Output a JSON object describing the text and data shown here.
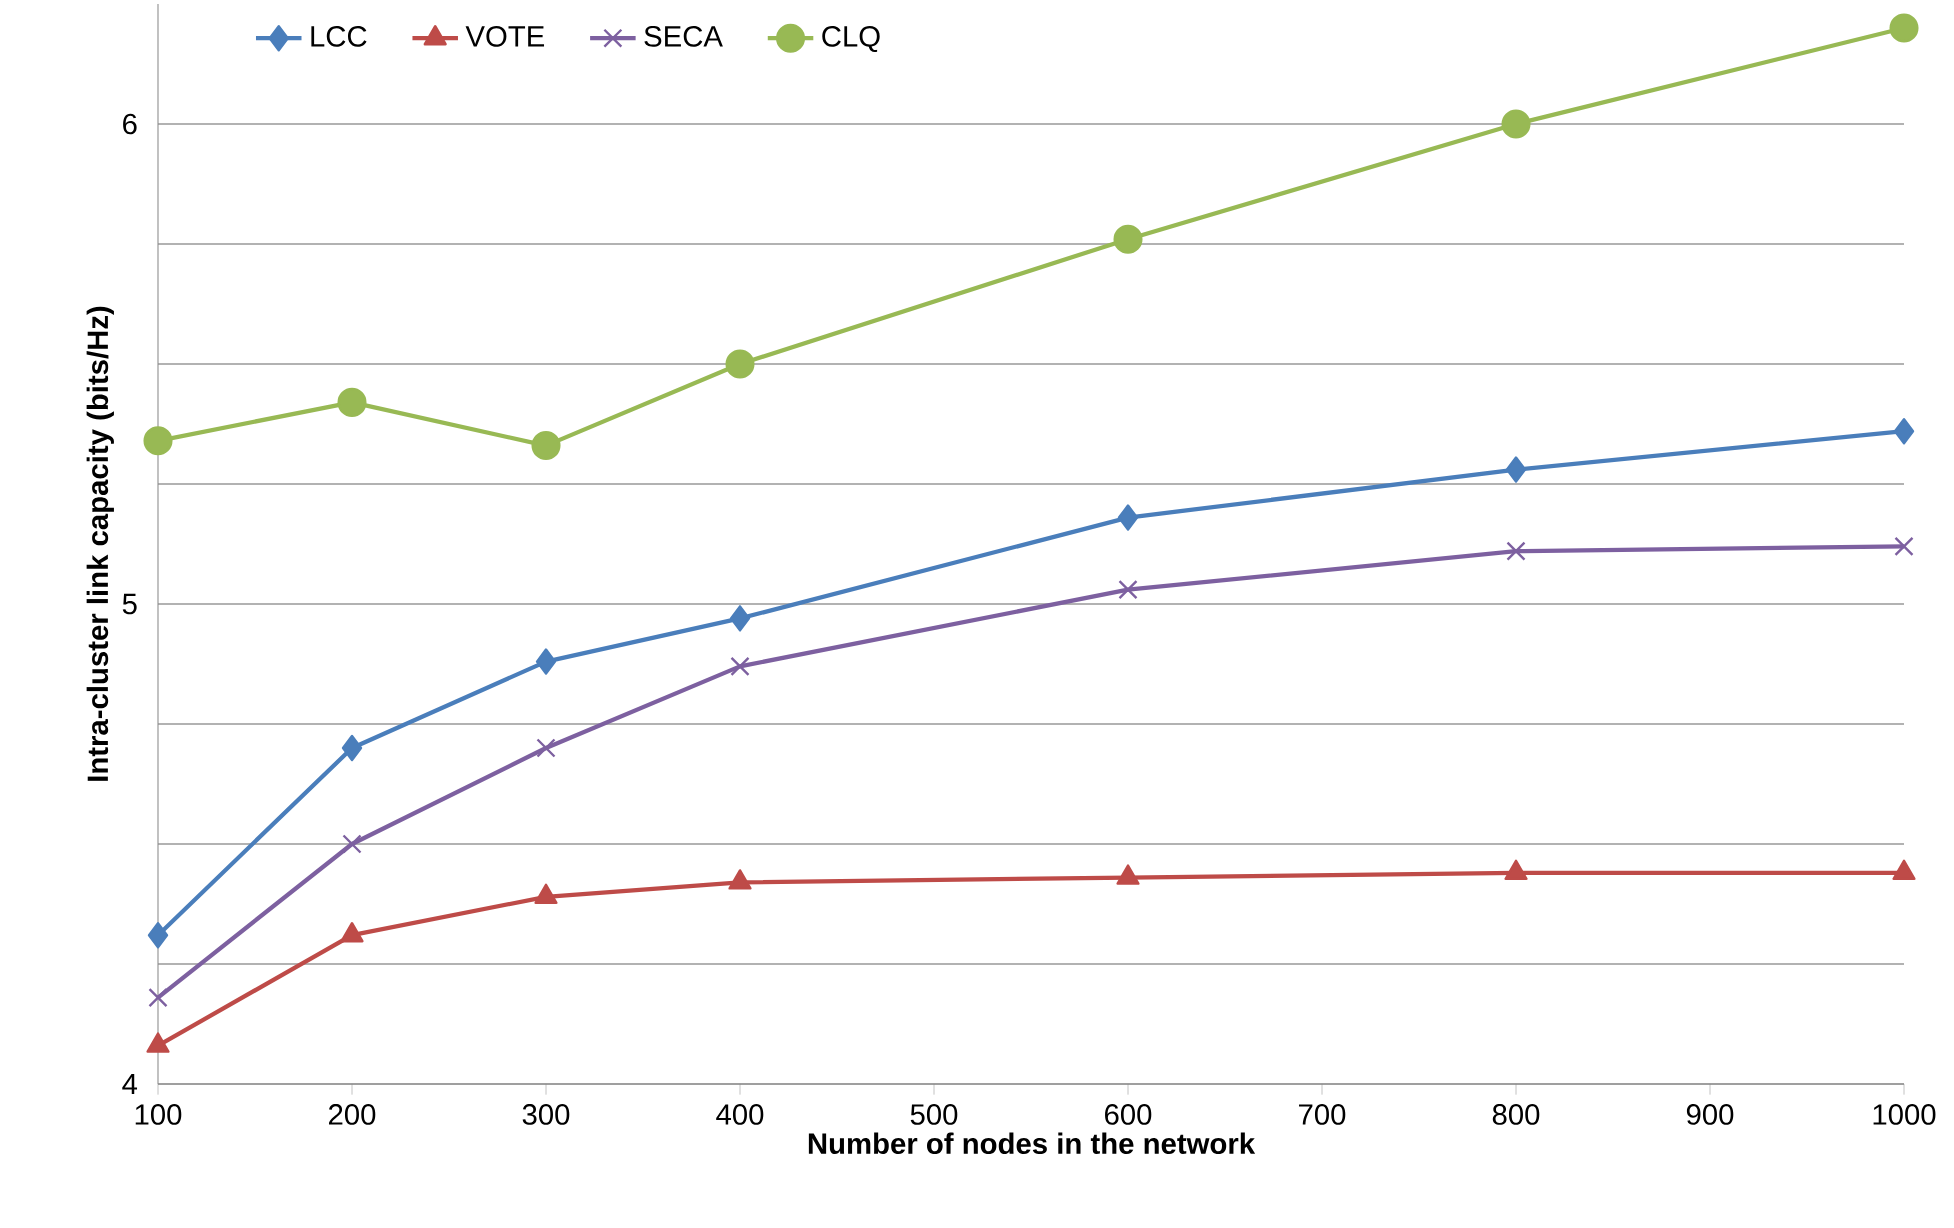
{
  "chart_data": {
    "type": "line",
    "xlabel": "Number of nodes in the network",
    "ylabel": "Intra-cluster link capacity (bits/Hz)",
    "x": [
      100,
      200,
      300,
      400,
      600,
      800,
      1000
    ],
    "series": [
      {
        "name": "LCC",
        "color": "#4a7ebb",
        "marker": "diamond",
        "values": [
          4.31,
          4.7,
          4.88,
          4.97,
          5.18,
          5.28,
          5.36
        ]
      },
      {
        "name": "VOTE",
        "color": "#be4b48",
        "marker": "triangle",
        "values": [
          4.08,
          4.31,
          4.39,
          4.42,
          4.43,
          4.44,
          4.44
        ]
      },
      {
        "name": "SECA",
        "color": "#7d60a0",
        "marker": "cross",
        "values": [
          4.18,
          4.5,
          4.7,
          4.87,
          5.03,
          5.11,
          5.12
        ]
      },
      {
        "name": "CLQ",
        "color": "#98b954",
        "marker": "circle",
        "values": [
          5.34,
          5.42,
          5.33,
          5.5,
          5.76,
          6.0,
          6.2
        ]
      }
    ],
    "xlim": [
      100,
      1000
    ],
    "xticks": [
      100,
      200,
      300,
      400,
      500,
      600,
      700,
      800,
      900,
      1000
    ],
    "ylim": [
      4,
      6.25
    ],
    "yticks": [
      4,
      {
        "value": 4.25,
        "label": null
      },
      {
        "value": 4.5,
        "label": null
      },
      {
        "value": 4.75,
        "label": null
      },
      5,
      {
        "value": 5.25,
        "label": null
      },
      {
        "value": 5.5,
        "label": null
      },
      {
        "value": 5.75,
        "label": null
      },
      6
    ],
    "grid": "y",
    "legend": "top left",
    "line_style": "solid"
  }
}
